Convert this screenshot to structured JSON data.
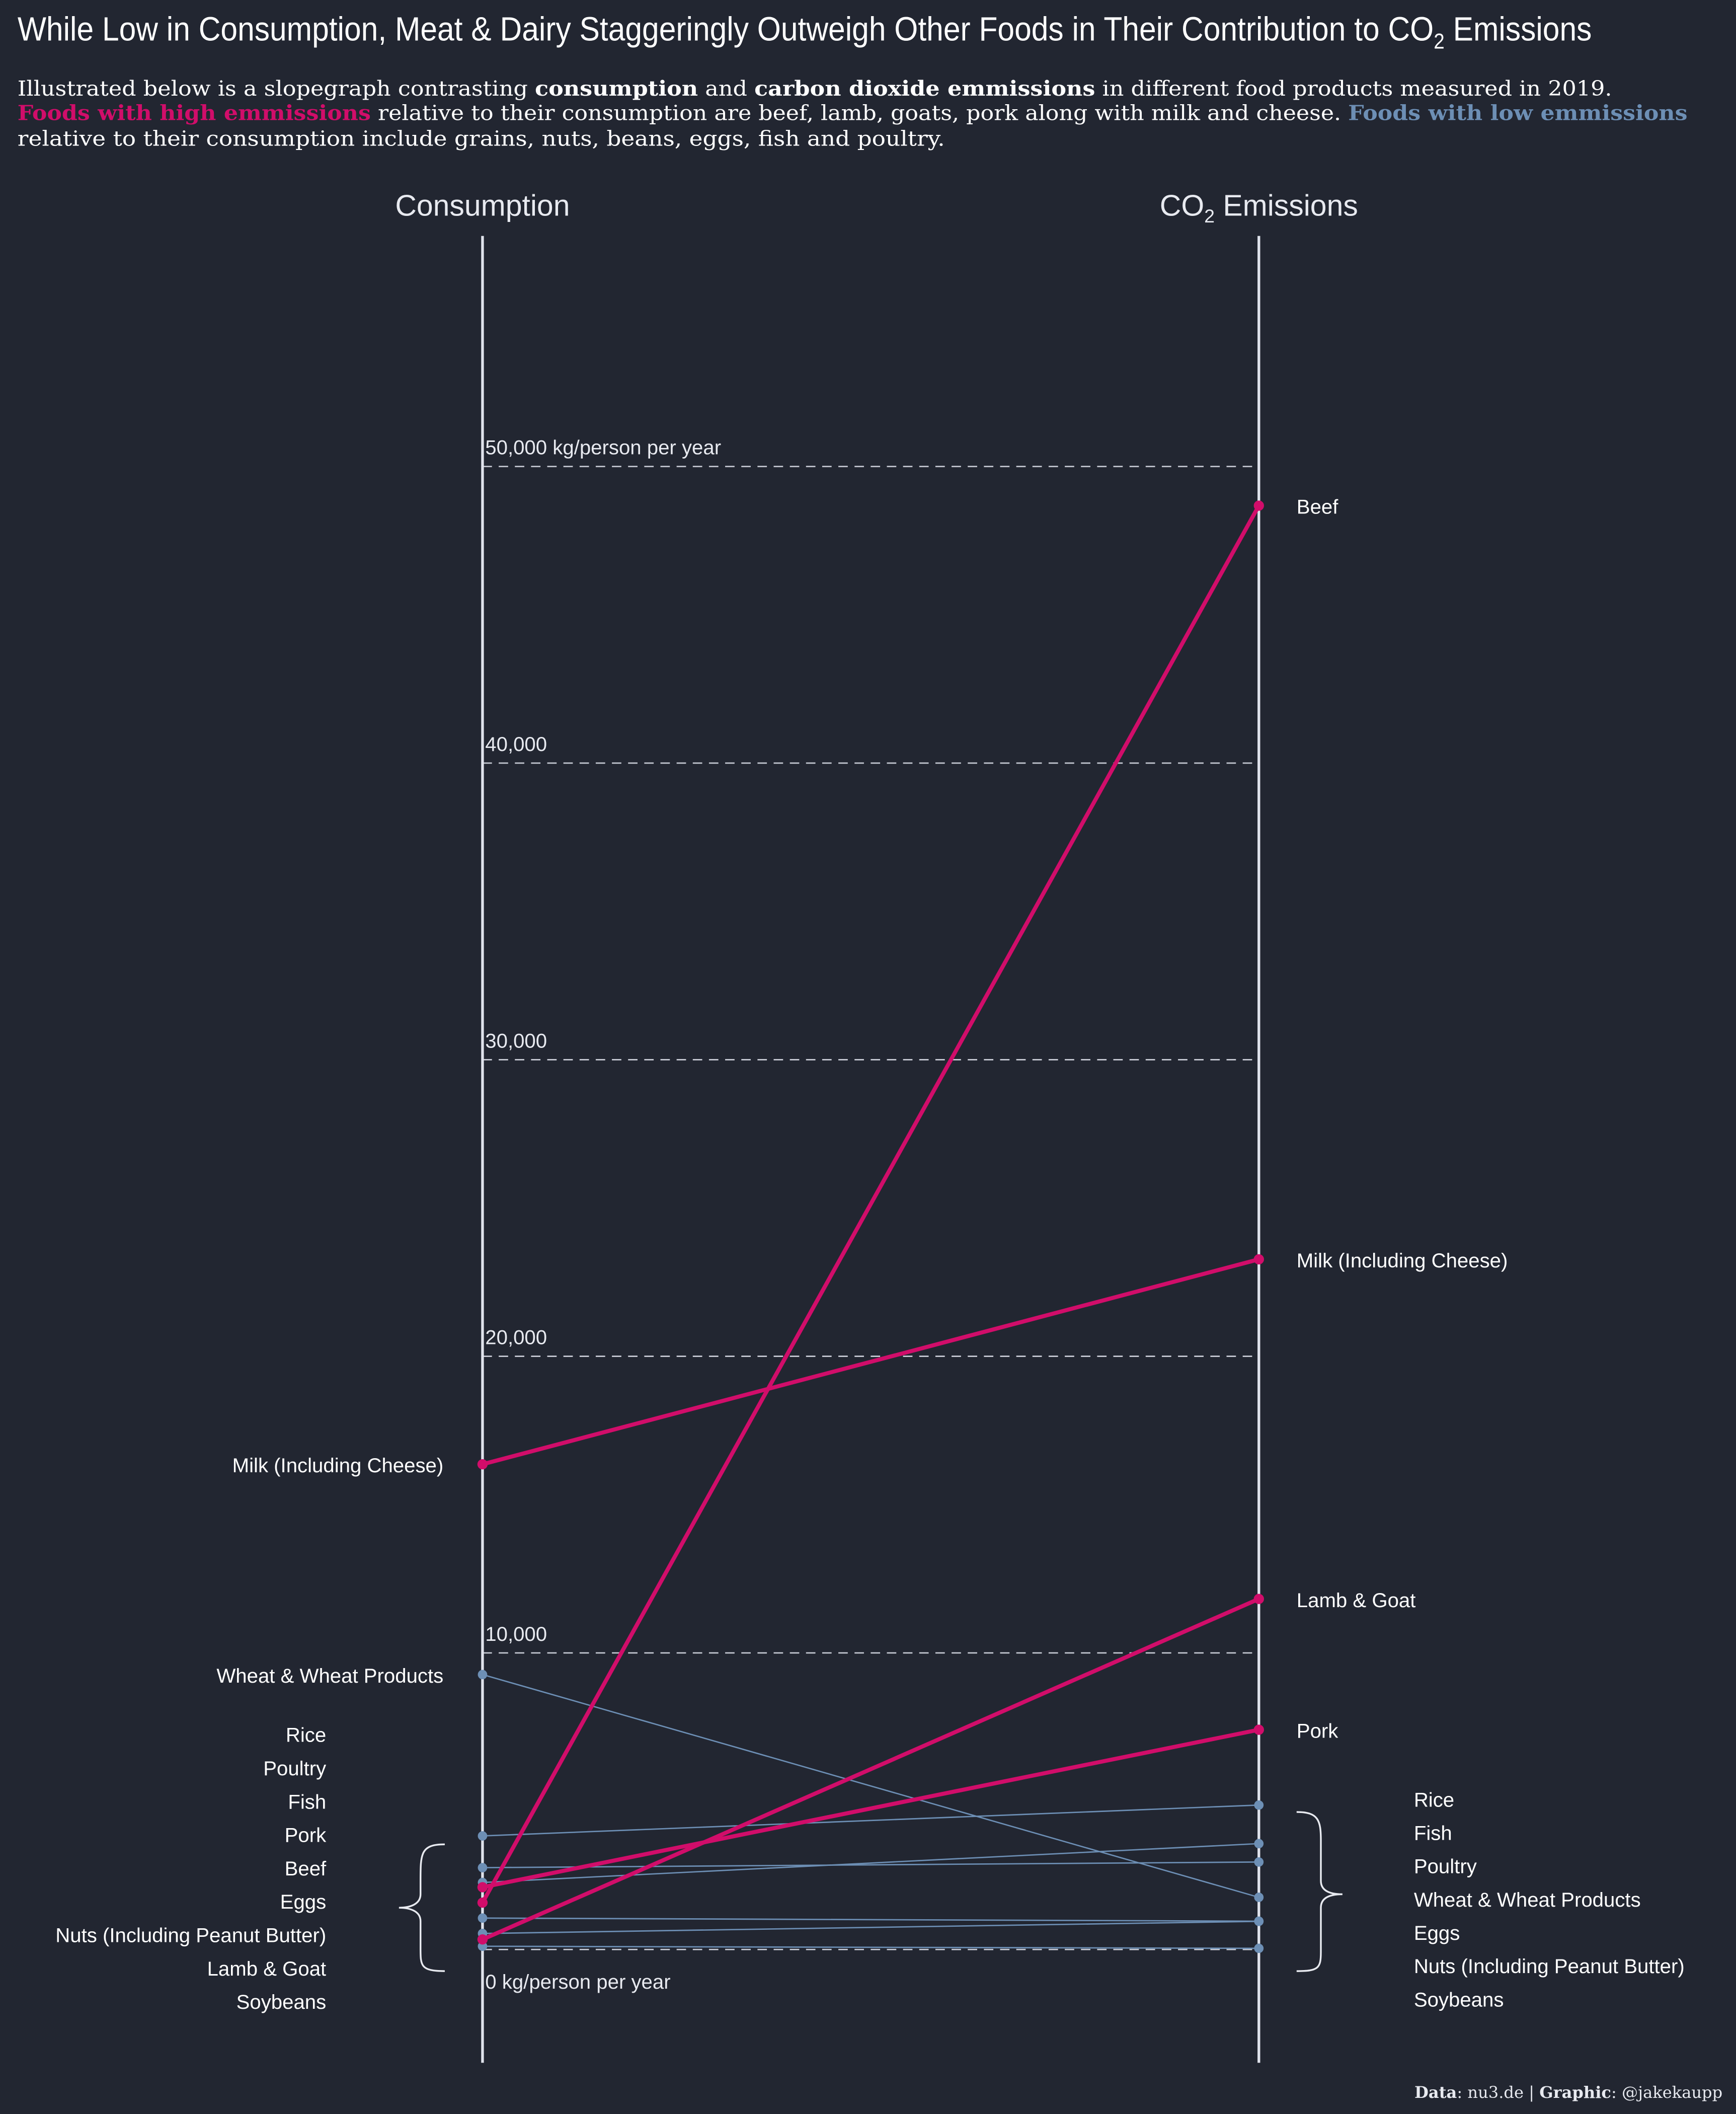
{
  "title": {
    "main": "While Low in Consumption, Meat & Dairy Staggeringly Outweigh Other Foods in Their Contribution to CO",
    "sub2": "2",
    "end": " Emissions"
  },
  "subtitle": {
    "l1_a": "Illustrated below is a slopegraph contrasting ",
    "l1_b": "consumption",
    "l1_c": " and ",
    "l1_d": "carbon dioxide emmissions",
    "l1_e": " in different food products measured in 2019.",
    "l2_a": "Foods with high emmissions",
    "l2_b": " relative to their consumption are beef, lamb, goats, pork along with milk and cheese. ",
    "l2_c": "Foods with low emmissions",
    "l3": "relative to their consumption include grains, nuts, beans, eggs, fish and poultry."
  },
  "footer": {
    "data_label": "Data",
    "data_value": ": nu3.de | ",
    "graphic_label": "Graphic",
    "graphic_value": ": @jakekaupp"
  },
  "colors": {
    "background": "#222631",
    "high": "#d10d6a",
    "low": "#6d8fb5",
    "axis": "#e0e3ec"
  },
  "chart_data": {
    "type": "slope",
    "left_axis": {
      "label": "Consumption"
    },
    "right_axis": {
      "label": "CO",
      "label_sub": "2",
      "label_end": " Emissions"
    },
    "ylim": [
      0,
      50000
    ],
    "grid": true,
    "tick_labels": [
      "0 kg/person per year",
      "10,000",
      "20,000",
      "30,000",
      "40,000",
      "50,000 kg/person per year"
    ],
    "tick_values": [
      0,
      10000,
      20000,
      30000,
      40000,
      50000
    ],
    "series": [
      {
        "name": "Beef",
        "group": "high",
        "consumption": 1580,
        "emissions": 48680
      },
      {
        "name": "Milk (Including Cheese)",
        "group": "high",
        "consumption": 16360,
        "emissions": 23270
      },
      {
        "name": "Lamb & Goat",
        "group": "high",
        "consumption": 340,
        "emissions": 11820
      },
      {
        "name": "Pork",
        "group": "high",
        "consumption": 2100,
        "emissions": 7410
      },
      {
        "name": "Wheat & Wheat Products",
        "group": "low",
        "consumption": 9270,
        "emissions": 1760
      },
      {
        "name": "Rice",
        "group": "low",
        "consumption": 3830,
        "emissions": 4870
      },
      {
        "name": "Poultry",
        "group": "low",
        "consumption": 2760,
        "emissions": 2950
      },
      {
        "name": "Fish",
        "group": "low",
        "consumption": 2260,
        "emissions": 3570
      },
      {
        "name": "Eggs",
        "group": "low",
        "consumption": 1060,
        "emissions": 955
      },
      {
        "name": "Nuts (Including Peanut Butter)",
        "group": "low",
        "consumption": 540,
        "emissions": 950
      },
      {
        "name": "Soybeans",
        "group": "low",
        "consumption": 110,
        "emissions": 40
      }
    ]
  }
}
